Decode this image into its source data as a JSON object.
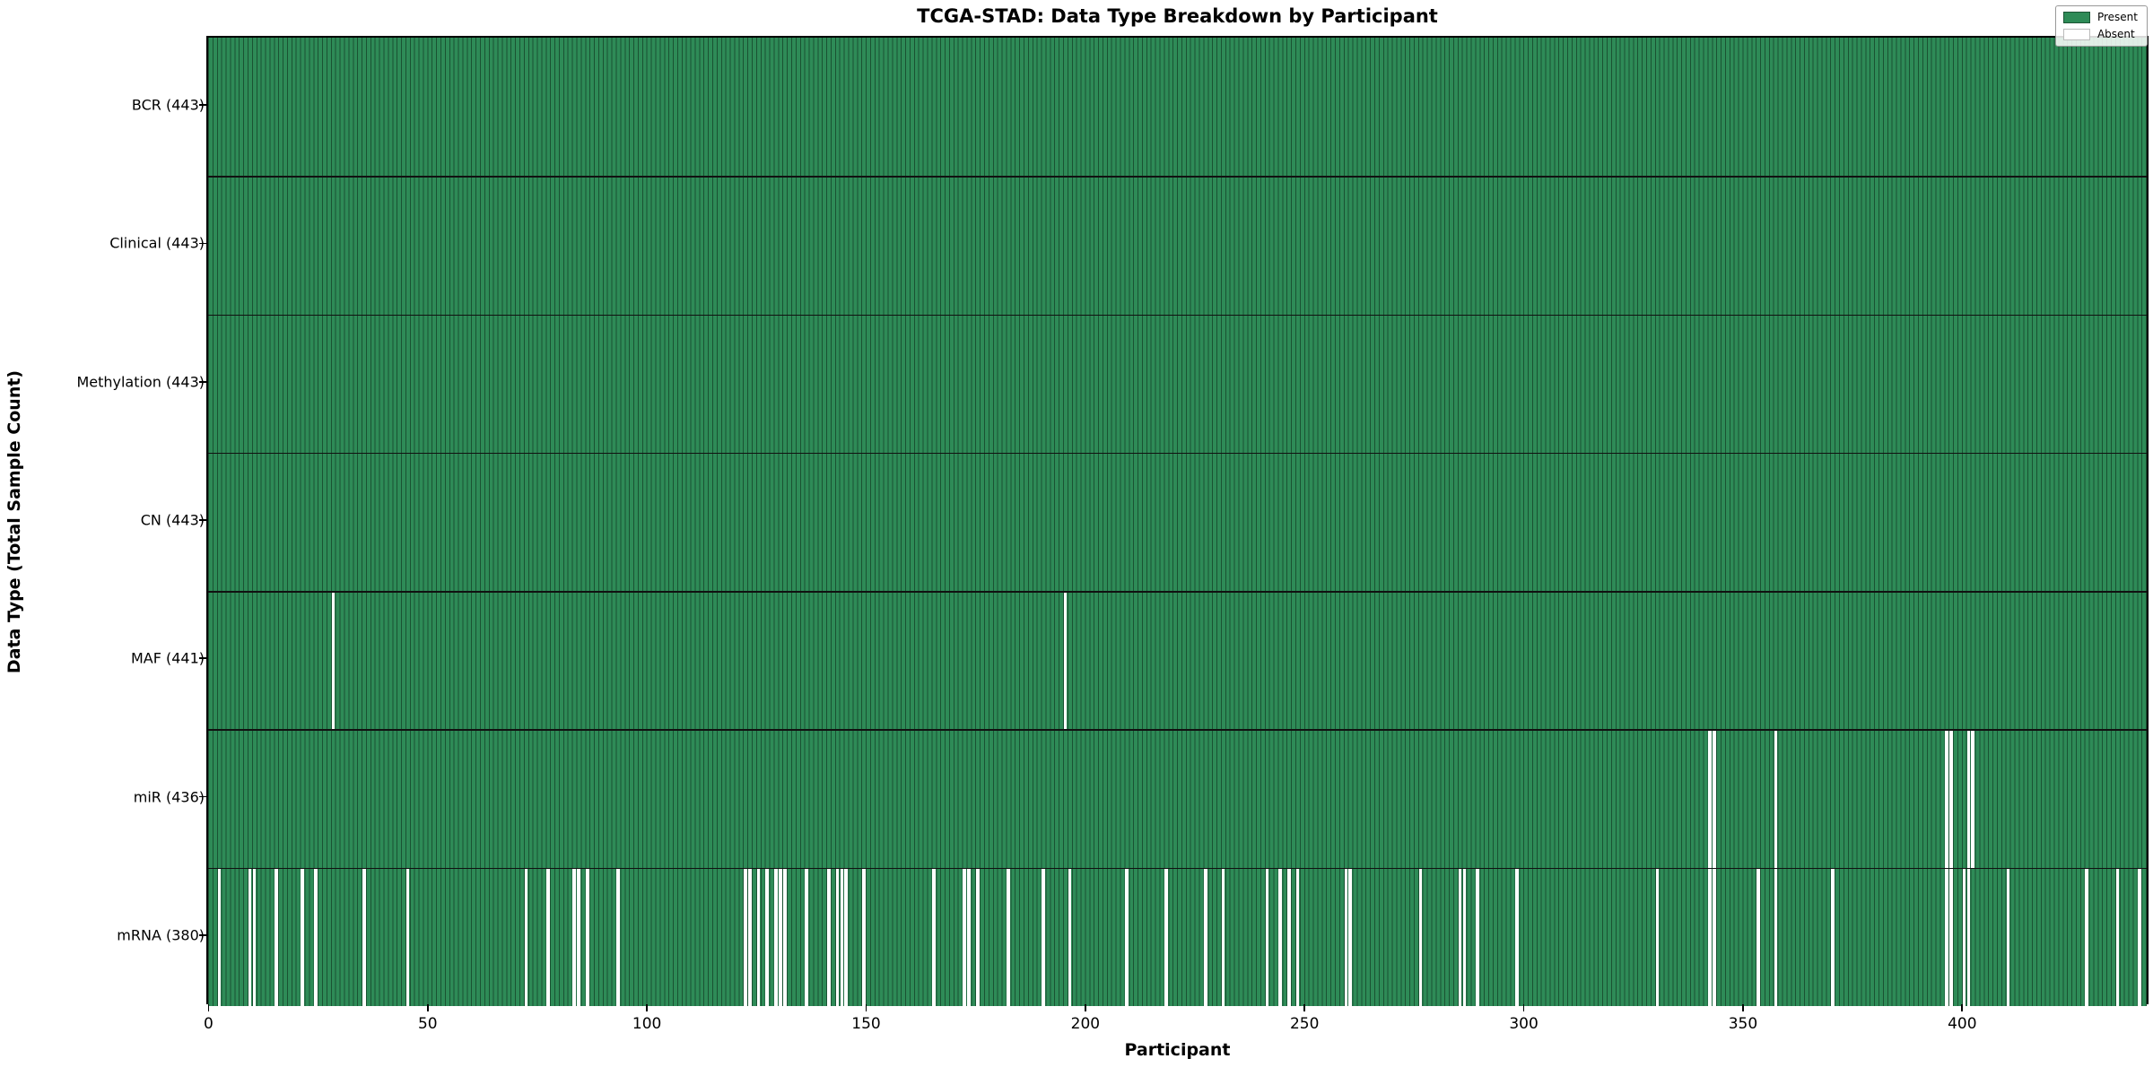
{
  "figure": {
    "title": "TCGA-STAD: Data Type Breakdown by Participant",
    "xlabel": "Participant",
    "ylabel": "Data Type (Total Sample Count)"
  },
  "chart_data": {
    "type": "heatmap",
    "title": "TCGA-STAD: Data Type Breakdown by Participant",
    "xlabel": "Participant",
    "ylabel": "Data Type (Total Sample Count)",
    "x_ticks": [
      0,
      50,
      100,
      150,
      200,
      250,
      300,
      350,
      400
    ],
    "n_participants": 443,
    "grid": false,
    "legend": {
      "position": "upper right",
      "entries": [
        {
          "label": "Present",
          "color": "#2e8b57"
        },
        {
          "label": "Absent",
          "color": "#ffffff"
        }
      ]
    },
    "colors": {
      "present": "#2e8b57",
      "absent": "#ffffff",
      "cell_edge": "rgba(5,25,15,0.5)",
      "plot_border": "#000000"
    },
    "rows": [
      {
        "label": "BCR (443)",
        "data_type": "BCR",
        "total": 443,
        "absent_participants": []
      },
      {
        "label": "Clinical (443)",
        "data_type": "Clinical",
        "total": 443,
        "absent_participants": []
      },
      {
        "label": "Methylation (443)",
        "data_type": "Methylation",
        "total": 443,
        "absent_participants": []
      },
      {
        "label": "CN (443)",
        "data_type": "CN",
        "total": 443,
        "absent_participants": []
      },
      {
        "label": "MAF (441)",
        "data_type": "MAF",
        "total": 441,
        "absent_participants": [
          28,
          195
        ]
      },
      {
        "label": "miR (436)",
        "data_type": "miR",
        "total": 436,
        "absent_participants": [
          342,
          343,
          357,
          396,
          397,
          401,
          402
        ]
      },
      {
        "label": "mRNA (380)",
        "data_type": "mRNA",
        "total": 380,
        "absent_participants": [
          2,
          9,
          10,
          15,
          21,
          24,
          35,
          45,
          72,
          77,
          83,
          84,
          86,
          93,
          122,
          123,
          125,
          127,
          129,
          130,
          131,
          136,
          141,
          143,
          144,
          145,
          149,
          165,
          172,
          173,
          175,
          182,
          190,
          196,
          209,
          218,
          227,
          231,
          241,
          244,
          246,
          248,
          259,
          260,
          276,
          285,
          286,
          289,
          298,
          330,
          342,
          343,
          353,
          357,
          370,
          396,
          397,
          400,
          401,
          410,
          428,
          435,
          440
        ]
      }
    ]
  }
}
